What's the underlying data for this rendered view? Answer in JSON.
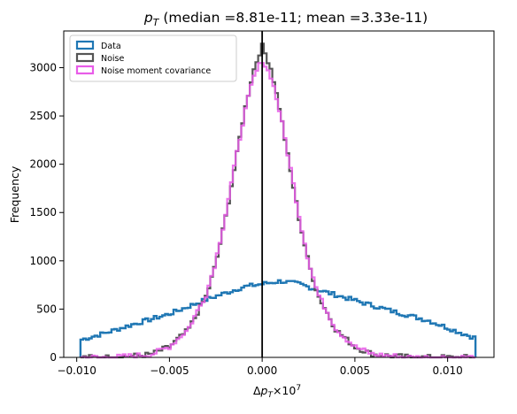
{
  "chart_data": {
    "type": "histogram",
    "title": "p_T (median =8.81e-11; mean =3.33e-11)",
    "title_parts": {
      "symbol_main": "p",
      "symbol_sub": "T",
      "rest": " (median =8.81e-11; mean =3.33e-11)"
    },
    "xlabel": "Δp_T×10^7",
    "xlabel_parts": {
      "delta": "Δ",
      "symbol_main": "p",
      "symbol_sub": "T",
      "times": "×10",
      "exp": "7"
    },
    "ylabel": "Frequency",
    "xlim": [
      -0.0107,
      0.0125
    ],
    "ylim": [
      0,
      3380
    ],
    "xticks": [
      -0.01,
      -0.005,
      0.0,
      0.005,
      0.01
    ],
    "xtick_labels": [
      "−0.010",
      "−0.005",
      "0.000",
      "0.005",
      "0.010"
    ],
    "yticks": [
      0,
      500,
      1000,
      1500,
      2000,
      2500,
      3000
    ],
    "ytick_labels": [
      "0",
      "500",
      "1000",
      "1500",
      "2000",
      "2500",
      "3000"
    ],
    "vertical_line_x": 0.0,
    "legend_position": "upper-left",
    "series": [
      {
        "name": "Data",
        "color": "#1f77b4",
        "shape": "broad",
        "x_range": [
          -0.0098,
          0.0115
        ],
        "left_edge_height": 180,
        "right_edge_height": 200,
        "peak": 800,
        "profile": [
          [
            -0.0098,
            180
          ],
          [
            -0.0085,
            250
          ],
          [
            -0.007,
            340
          ],
          [
            -0.005,
            450
          ],
          [
            -0.003,
            600
          ],
          [
            -0.001,
            730
          ],
          [
            0.0,
            760
          ],
          [
            0.001,
            790
          ],
          [
            0.002,
            760
          ],
          [
            0.003,
            700
          ],
          [
            0.005,
            590
          ],
          [
            0.007,
            480
          ],
          [
            0.009,
            380
          ],
          [
            0.0105,
            270
          ],
          [
            0.0115,
            200
          ]
        ]
      },
      {
        "name": "Noise",
        "color": "#555555",
        "shape": "peaked",
        "peak": 3230,
        "profile": [
          [
            -0.008,
            0
          ],
          [
            -0.006,
            30
          ],
          [
            -0.005,
            110
          ],
          [
            -0.004,
            280
          ],
          [
            -0.003,
            640
          ],
          [
            -0.0025,
            970
          ],
          [
            -0.002,
            1420
          ],
          [
            -0.0015,
            1950
          ],
          [
            -0.001,
            2500
          ],
          [
            -0.0005,
            2950
          ],
          [
            0.0,
            3230
          ],
          [
            0.0005,
            2980
          ],
          [
            0.001,
            2520
          ],
          [
            0.0015,
            1960
          ],
          [
            0.002,
            1430
          ],
          [
            0.0025,
            980
          ],
          [
            0.003,
            650
          ],
          [
            0.004,
            280
          ],
          [
            0.005,
            110
          ],
          [
            0.006,
            30
          ],
          [
            0.008,
            0
          ]
        ]
      },
      {
        "name": "Noise moment covariance",
        "color": "#e85ce8",
        "shape": "peaked",
        "peak": 3080,
        "profile": [
          [
            -0.008,
            0
          ],
          [
            -0.006,
            30
          ],
          [
            -0.005,
            110
          ],
          [
            -0.004,
            290
          ],
          [
            -0.003,
            660
          ],
          [
            -0.0025,
            1000
          ],
          [
            -0.002,
            1450
          ],
          [
            -0.0015,
            1970
          ],
          [
            -0.001,
            2480
          ],
          [
            -0.0005,
            2880
          ],
          [
            0.0,
            3080
          ],
          [
            0.0005,
            2900
          ],
          [
            0.001,
            2500
          ],
          [
            0.0015,
            1990
          ],
          [
            0.002,
            1460
          ],
          [
            0.0025,
            1000
          ],
          [
            0.003,
            660
          ],
          [
            0.004,
            290
          ],
          [
            0.005,
            110
          ],
          [
            0.006,
            30
          ],
          [
            0.008,
            0
          ]
        ]
      }
    ]
  }
}
